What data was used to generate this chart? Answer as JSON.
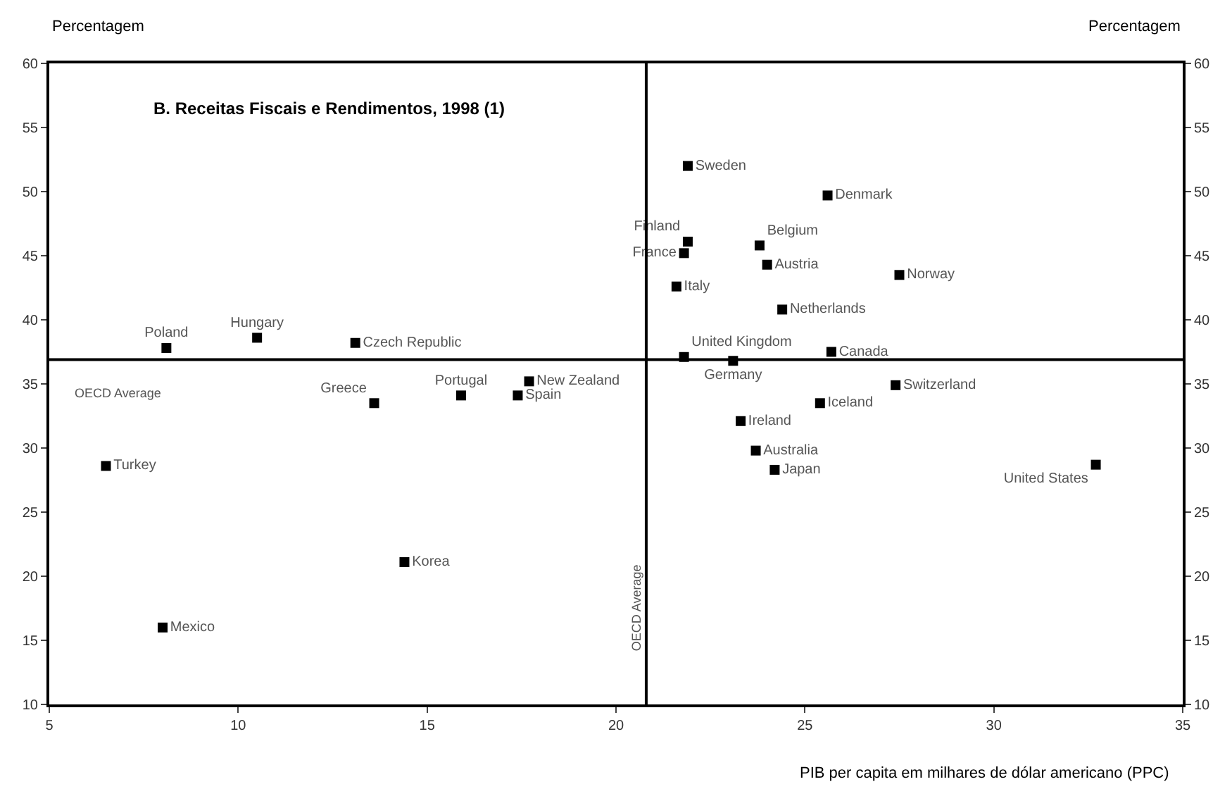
{
  "chart_data": {
    "type": "scatter",
    "title": "B. Receitas Fiscais e Rendimentos, 1998 (1)",
    "xlabel": "PIB per capita em milhares de dólar americano (PPC)",
    "ylabel": "Percentagem",
    "y2label": "Percentagem",
    "x": [
      21.9,
      25.6,
      21.9,
      21.8,
      23.8,
      24.0,
      27.5,
      21.6,
      24.4,
      21.8,
      23.1,
      25.7,
      27.4,
      25.4,
      23.3,
      23.7,
      24.2,
      32.7,
      8.1,
      10.5,
      13.1,
      13.6,
      15.9,
      17.7,
      17.4,
      6.5,
      14.4,
      8.0
    ],
    "series": [
      {
        "color": "#000000",
        "values": [
          52.0,
          49.7,
          46.1,
          45.2,
          45.8,
          44.3,
          43.5,
          42.6,
          40.8,
          37.1,
          36.8,
          37.5,
          34.9,
          33.5,
          32.1,
          29.8,
          28.3,
          28.7,
          37.8,
          38.6,
          38.2,
          33.5,
          34.1,
          35.2,
          34.1,
          28.6,
          21.1,
          16.0
        ],
        "value_labels": [
          "Sweden",
          "Denmark",
          "Finland",
          "France",
          "Belgium",
          "Austria",
          "Norway",
          "Italy",
          "Netherlands",
          "United Kingdom",
          "Germany",
          "Canada",
          "Switzerland",
          "Iceland",
          "Ireland",
          "Australia",
          "Japan",
          "United States",
          "Poland",
          "Hungary",
          "Czech Republic",
          "Greece",
          "Portugal",
          "New Zealand",
          "Spain",
          "Turkey",
          "Korea",
          "Mexico"
        ]
      }
    ],
    "xlim": [
      5,
      35
    ],
    "xticks": [
      5,
      10,
      15,
      20,
      25,
      30,
      35
    ],
    "ylim": [
      10,
      60
    ],
    "yticks": [
      10,
      15,
      20,
      25,
      30,
      35,
      40,
      45,
      50,
      55,
      60
    ],
    "y2lim": [
      10,
      60
    ],
    "y2ticks": [
      10,
      15,
      20,
      25,
      30,
      35,
      40,
      45,
      50,
      55,
      60
    ],
    "ref_lines": [
      {
        "axis": "x",
        "value": 20.8,
        "label": "OECD Average"
      },
      {
        "axis": "y",
        "value": 36.9,
        "label": "OECD Average"
      }
    ],
    "marker": "square"
  }
}
